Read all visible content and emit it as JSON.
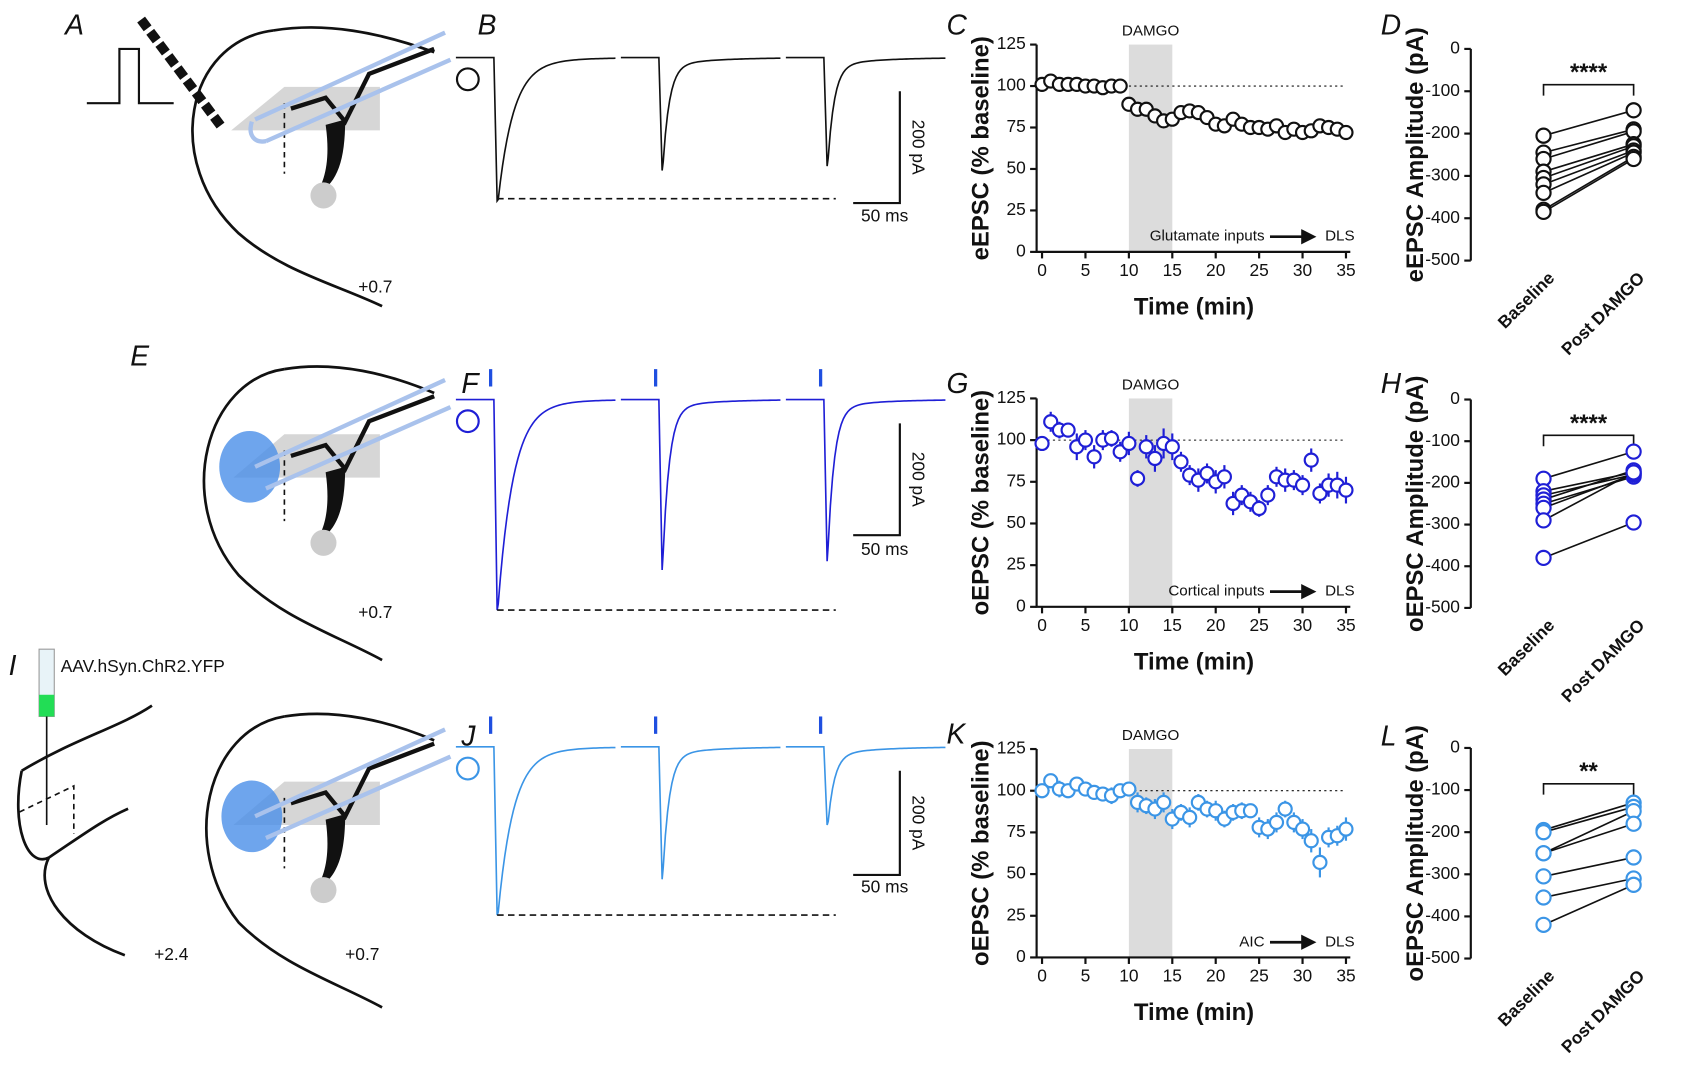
{
  "figure": {
    "panel_letters": [
      "A",
      "B",
      "C",
      "D",
      "E",
      "F",
      "G",
      "H",
      "I",
      "J",
      "K",
      "L"
    ],
    "schematic_labels": [
      "+0.7",
      "+0.7",
      "+2.4",
      "+0.7"
    ],
    "vector_label": "AAV.hSyn.ChR2.YFP",
    "scale_bars": [
      {
        "current": "200 pA",
        "time": "50 ms"
      },
      {
        "current": "200 pA",
        "time": "50 ms"
      },
      {
        "current": "200 pA",
        "time": "50 ms"
      }
    ]
  },
  "chart_data": [
    {
      "type": "scatter",
      "y_label": "eEPSC (% baseline)",
      "x_label": "Time (min)",
      "color": "#111111",
      "x": [
        0,
        1,
        2,
        3,
        4,
        5,
        6,
        7,
        8,
        9,
        10,
        11,
        12,
        13,
        14,
        15,
        16,
        17,
        18,
        19,
        20,
        21,
        22,
        23,
        24,
        25,
        26,
        27,
        28,
        29,
        30,
        31,
        32,
        33,
        34,
        35
      ],
      "values": [
        101,
        103,
        101,
        101,
        101,
        100,
        100,
        99,
        100,
        100,
        89,
        86,
        86,
        82,
        79,
        80,
        84,
        85,
        84,
        81,
        77,
        76,
        80,
        77,
        75,
        75,
        74,
        76,
        72,
        74,
        72,
        73,
        76,
        75,
        74,
        72
      ],
      "xlim": [
        0,
        35
      ],
      "xticks": [
        0,
        5,
        10,
        15,
        20,
        25,
        30,
        35
      ],
      "ylim": [
        0,
        125
      ],
      "yticks": [
        0,
        25,
        50,
        75,
        100,
        125
      ],
      "reference_line": 100,
      "shade": [
        10,
        15
      ],
      "shade_label": "DAMGO",
      "input_label": "Glutamate inputs",
      "target_label": "DLS"
    },
    {
      "type": "paired",
      "y_label": "eEPSC Amplitude (pA)",
      "color": "#111111",
      "categories": [
        "Baseline",
        "Post DAMGO"
      ],
      "series": [
        {
          "values": [
            -205,
            -145
          ]
        },
        {
          "values": [
            -245,
            -190
          ]
        },
        {
          "values": [
            -260,
            -195
          ]
        },
        {
          "values": [
            -290,
            -225
          ]
        },
        {
          "values": [
            -305,
            -230
          ]
        },
        {
          "values": [
            -320,
            -240
          ]
        },
        {
          "values": [
            -340,
            -245
          ]
        },
        {
          "values": [
            -380,
            -255
          ]
        },
        {
          "values": [
            -385,
            -260
          ]
        }
      ],
      "ylim": [
        -500,
        0
      ],
      "yticks": [
        -500,
        -400,
        -300,
        -200,
        -100,
        0
      ],
      "significance": "****"
    },
    {
      "type": "scatter",
      "y_label": "oEPSC (% baseline)",
      "x_label": "Time (min)",
      "color": "#1f1fd6",
      "x": [
        0,
        1,
        2,
        3,
        4,
        5,
        6,
        7,
        8,
        9,
        10,
        11,
        12,
        13,
        14,
        15,
        16,
        17,
        18,
        19,
        20,
        21,
        22,
        23,
        24,
        25,
        26,
        27,
        28,
        29,
        30,
        31,
        32,
        33,
        34,
        35
      ],
      "values": [
        98,
        111,
        106,
        106,
        96,
        100,
        90,
        100,
        101,
        93,
        98,
        77,
        96,
        89,
        98,
        96,
        87,
        79,
        76,
        80,
        75,
        78,
        62,
        67,
        63,
        59,
        67,
        78,
        76,
        76,
        73,
        88,
        68,
        73,
        73,
        70
      ],
      "errors": [
        4,
        6,
        5,
        4,
        8,
        6,
        7,
        6,
        5,
        6,
        7,
        5,
        7,
        8,
        9,
        8,
        6,
        6,
        7,
        6,
        7,
        7,
        7,
        6,
        6,
        5,
        6,
        6,
        7,
        6,
        6,
        7,
        6,
        7,
        8,
        8
      ],
      "xlim": [
        0,
        35
      ],
      "xticks": [
        0,
        5,
        10,
        15,
        20,
        25,
        30,
        35
      ],
      "ylim": [
        0,
        125
      ],
      "yticks": [
        0,
        25,
        50,
        75,
        100,
        125
      ],
      "reference_line": 100,
      "shade": [
        10,
        15
      ],
      "shade_label": "DAMGO",
      "input_label": "Cortical inputs",
      "target_label": "DLS"
    },
    {
      "type": "paired",
      "y_label": "oEPSC Amplitude (pA)",
      "color": "#1f1fd6",
      "categories": [
        "Baseline",
        "Post DAMGO"
      ],
      "series": [
        {
          "values": [
            -190,
            -125
          ]
        },
        {
          "values": [
            -220,
            -175
          ]
        },
        {
          "values": [
            -230,
            -180
          ]
        },
        {
          "values": [
            -240,
            -170
          ]
        },
        {
          "values": [
            -250,
            -185
          ]
        },
        {
          "values": [
            -260,
            -180
          ]
        },
        {
          "values": [
            -290,
            -175
          ]
        },
        {
          "values": [
            -380,
            -295
          ]
        }
      ],
      "ylim": [
        -500,
        0
      ],
      "yticks": [
        -500,
        -400,
        -300,
        -200,
        -100,
        0
      ],
      "significance": "****"
    },
    {
      "type": "scatter",
      "y_label": "oEPSC (% baseline)",
      "x_label": "Time (min)",
      "color": "#3b95e6",
      "x": [
        0,
        1,
        2,
        3,
        4,
        5,
        6,
        7,
        8,
        9,
        10,
        11,
        12,
        13,
        14,
        15,
        16,
        17,
        18,
        19,
        20,
        21,
        22,
        23,
        24,
        25,
        26,
        27,
        28,
        29,
        30,
        31,
        32,
        33,
        34,
        35
      ],
      "values": [
        100,
        106,
        101,
        100,
        104,
        101,
        99,
        98,
        97,
        100,
        101,
        93,
        91,
        89,
        93,
        83,
        87,
        84,
        93,
        89,
        88,
        83,
        87,
        88,
        88,
        78,
        77,
        81,
        89,
        81,
        77,
        70,
        57,
        72,
        73,
        77
      ],
      "errors": [
        3,
        4,
        5,
        4,
        3,
        3,
        4,
        4,
        5,
        4,
        3,
        6,
        5,
        6,
        6,
        6,
        5,
        6,
        5,
        5,
        6,
        5,
        5,
        5,
        4,
        6,
        6,
        6,
        5,
        6,
        6,
        7,
        9,
        6,
        6,
        7
      ],
      "xlim": [
        0,
        35
      ],
      "xticks": [
        0,
        5,
        10,
        15,
        20,
        25,
        30,
        35
      ],
      "ylim": [
        0,
        125
      ],
      "yticks": [
        0,
        25,
        50,
        75,
        100,
        125
      ],
      "reference_line": 100,
      "shade": [
        10,
        15
      ],
      "shade_label": "DAMGO",
      "input_label": "AIC",
      "target_label": "DLS"
    },
    {
      "type": "paired",
      "y_label": "oEPSC Amplitude (pA)",
      "color": "#3b95e6",
      "categories": [
        "Baseline",
        "Post DAMGO"
      ],
      "series": [
        {
          "values": [
            -195,
            -130
          ]
        },
        {
          "values": [
            -200,
            -140
          ]
        },
        {
          "values": [
            -250,
            -150
          ]
        },
        {
          "values": [
            -250,
            -180
          ]
        },
        {
          "values": [
            -305,
            -260
          ]
        },
        {
          "values": [
            -355,
            -310
          ]
        },
        {
          "values": [
            -420,
            -325
          ]
        }
      ],
      "ylim": [
        -500,
        0
      ],
      "yticks": [
        -500,
        -400,
        -300,
        -200,
        -100,
        0
      ],
      "significance": "**"
    }
  ]
}
